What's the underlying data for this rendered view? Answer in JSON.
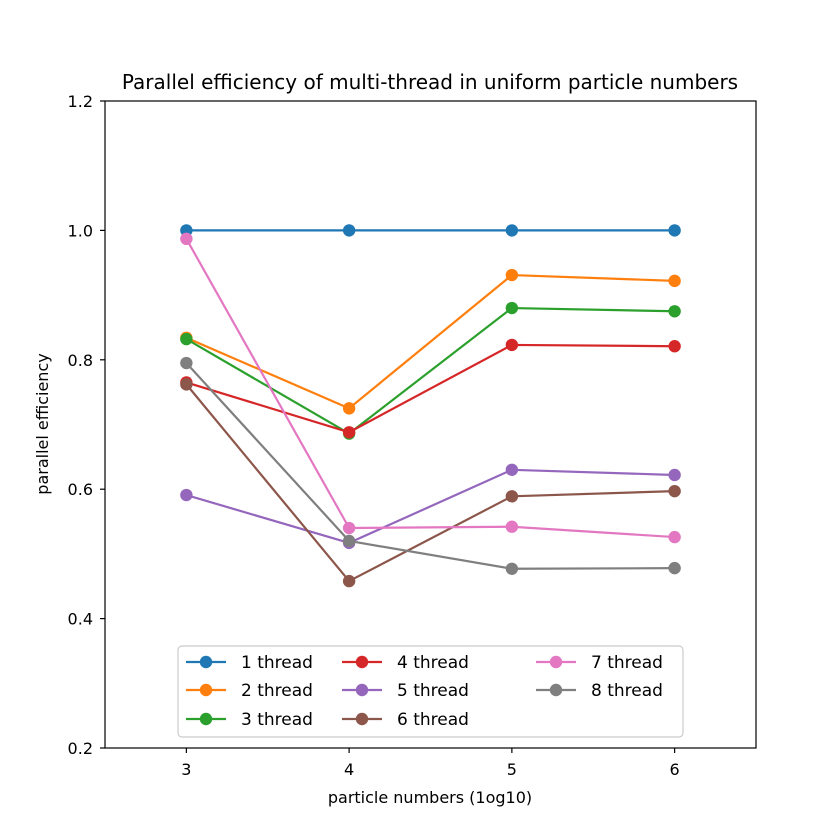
{
  "chart_data": {
    "type": "line",
    "title": "Parallel efficiency of multi-thread in uniform particle numbers",
    "xlabel": "particle numbers (1og10)",
    "ylabel": "parallel efficiency",
    "xlim": [
      2.5,
      6.5
    ],
    "ylim": [
      0.2,
      1.2
    ],
    "x": [
      3,
      4,
      5,
      6
    ],
    "x_ticks": [
      "3",
      "4",
      "5",
      "6"
    ],
    "y_ticks": [
      "0.2",
      "0.4",
      "0.6",
      "0.8",
      "1.0",
      "1.2"
    ],
    "grid": false,
    "legend_position": "lower center",
    "legend_columns": 3,
    "series": [
      {
        "name": "1 thread",
        "color": "#1f77b4",
        "values": [
          1.0,
          1.0,
          1.0,
          1.0
        ]
      },
      {
        "name": "2 thread",
        "color": "#ff7f0e",
        "values": [
          0.834,
          0.725,
          0.931,
          0.922
        ]
      },
      {
        "name": "3 thread",
        "color": "#2ca02c",
        "values": [
          0.832,
          0.686,
          0.88,
          0.875
        ]
      },
      {
        "name": "4 thread",
        "color": "#d62728",
        "values": [
          0.765,
          0.688,
          0.823,
          0.821
        ]
      },
      {
        "name": "5 thread",
        "color": "#9467bd",
        "values": [
          0.591,
          0.517,
          0.63,
          0.622
        ]
      },
      {
        "name": "6 thread",
        "color": "#8c564b",
        "values": [
          0.762,
          0.458,
          0.589,
          0.597
        ]
      },
      {
        "name": "7 thread",
        "color": "#e377c2",
        "values": [
          0.987,
          0.54,
          0.542,
          0.526
        ]
      },
      {
        "name": "8 thread",
        "color": "#7f7f7f",
        "values": [
          0.795,
          0.52,
          0.477,
          0.478
        ]
      }
    ]
  }
}
